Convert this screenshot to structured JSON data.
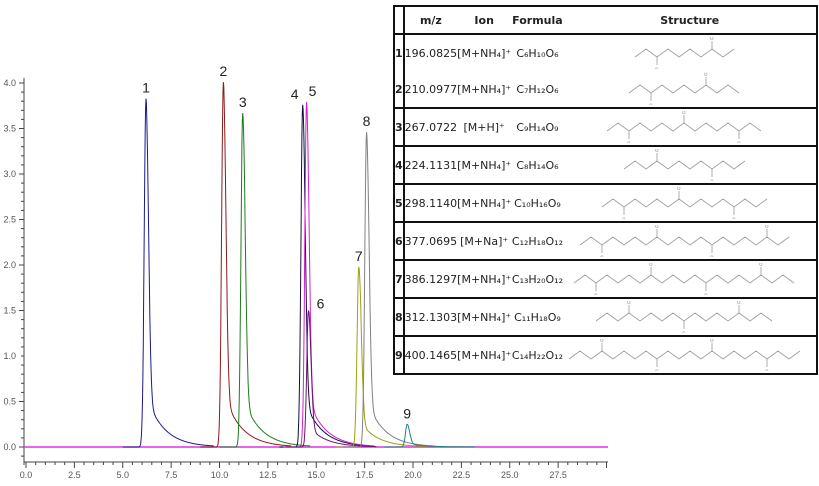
{
  "chart_data": {
    "type": "line",
    "xlim": [
      0,
      30
    ],
    "ylim": [
      -0.2,
      4.1
    ],
    "x_ticks": [
      "0.0",
      "2.5",
      "5.0",
      "7.5",
      "10.0",
      "12.5",
      "15.0",
      "17.5",
      "20.0",
      "22.5",
      "25.0",
      "27.5"
    ],
    "y_ticks": [
      "0.0",
      "0.5",
      "1.0",
      "1.5",
      "2.0",
      "2.5",
      "3.0",
      "3.5",
      "4.0"
    ],
    "grid": false,
    "baseline_color": "#e030e0",
    "series": [
      {
        "label": "1",
        "rt": 6.2,
        "height": 3.83,
        "color": "#1a1a8c"
      },
      {
        "label": "2",
        "rt": 10.2,
        "height": 4.01,
        "color": "#8b1a1a"
      },
      {
        "label": "3",
        "rt": 11.2,
        "height": 3.67,
        "color": "#1f7a1f"
      },
      {
        "label": "4",
        "rt": 14.3,
        "height": 3.76,
        "color": "#101040"
      },
      {
        "label": "5",
        "rt": 14.5,
        "height": 3.79,
        "color": "#d020d0"
      },
      {
        "label": "6",
        "rt": 14.6,
        "height": 1.5,
        "color": "#701070"
      },
      {
        "label": "7",
        "rt": 17.2,
        "height": 1.98,
        "color": "#a0a010"
      },
      {
        "label": "8",
        "rt": 17.6,
        "height": 3.46,
        "color": "#808080"
      },
      {
        "label": "9",
        "rt": 19.7,
        "height": 0.25,
        "color": "#208080"
      }
    ]
  },
  "table": {
    "headers": {
      "mz": "m/z",
      "ion": "Ion",
      "formula": "Formula",
      "structure": "Structure"
    },
    "rows": [
      {
        "no": "1",
        "mz": "196.0825",
        "ion": "[M+NH₄]⁺",
        "formula": "C₆H₁₀O₆",
        "units": 1,
        "ends": "mm"
      },
      {
        "no": "2",
        "mz": "210.0977",
        "ion": "[M+NH₄]⁺",
        "formula": "C₇H₁₂O₆",
        "units": 1,
        "ends": "me"
      },
      {
        "no": "3",
        "mz": "267.0722",
        "ion": "[M+H]⁺",
        "formula": "C₉H₁₄O₉",
        "units": 2,
        "ends": "mm"
      },
      {
        "no": "4",
        "mz": "224.1131",
        "ion": "[M+NH₄]⁺",
        "formula": "C₈H₁₄O₆",
        "units": 1,
        "ends": "ee"
      },
      {
        "no": "5",
        "mz": "298.1140",
        "ion": "[M+NH₄]⁺",
        "formula": "C₁₀H₁₆O₉",
        "units": 2,
        "ends": "me"
      },
      {
        "no": "6",
        "mz": "377.0695",
        "ion": "[M+Na]⁺",
        "formula": "C₁₂H₁₈O₁₂",
        "units": 3,
        "ends": "mm"
      },
      {
        "no": "7",
        "mz": "386.1297",
        "ion": "[M+NH₄]⁺",
        "formula": "C₁₃H₂₀O₁₂",
        "units": 3,
        "ends": "me"
      },
      {
        "no": "8",
        "mz": "312.1303",
        "ion": "[M+NH₄]⁺",
        "formula": "C₁₁H₁₈O₉",
        "units": 2,
        "ends": "ee"
      },
      {
        "no": "9",
        "mz": "400.1465",
        "ion": "[M+NH₄]⁺",
        "formula": "C₁₄H₂₂O₁₂",
        "units": 3,
        "ends": "ee"
      }
    ]
  }
}
